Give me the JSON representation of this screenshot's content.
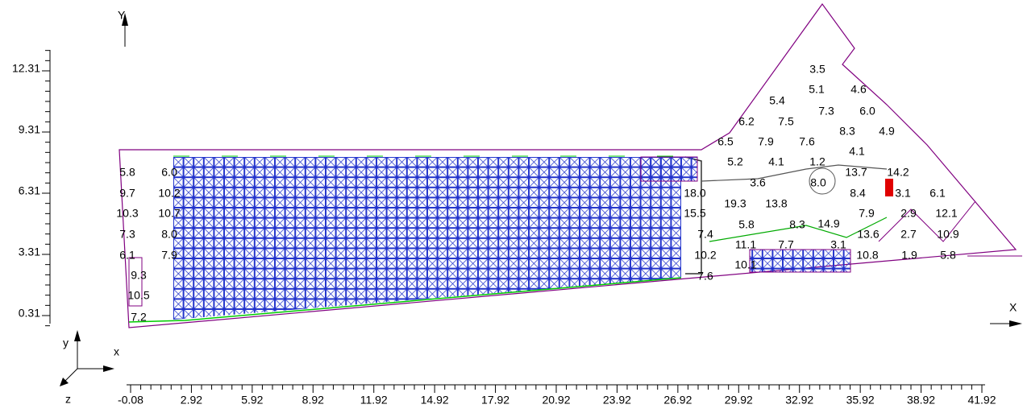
{
  "axes": {
    "y_letter": "Y",
    "x_letter": "X",
    "gizmo_y": "y",
    "gizmo_x": "x",
    "gizmo_z": "z",
    "xticks": [
      "-0.08",
      "2.92",
      "5.92",
      "8.92",
      "11.92",
      "14.92",
      "17.92",
      "20.92",
      "23.92",
      "26.92",
      "29.92",
      "32.92",
      "35.92",
      "38.92",
      "41.92"
    ],
    "yticks": [
      "12.31",
      "9.31",
      "6.31",
      "3.31",
      "0.31"
    ]
  },
  "labels": [
    "5.8",
    "6.0",
    "9.7",
    "10.2",
    "10.3",
    "10.7",
    "7.3",
    "8.0",
    "6.1",
    "7.9",
    "9.3",
    "10.5",
    "7.2",
    "3.5",
    "5.1",
    "4.6",
    "5.4",
    "7.3",
    "6.0",
    "6.2",
    "7.5",
    "8.3",
    "4.9",
    "6.5",
    "7.9",
    "7.6",
    "5.2",
    "4.1",
    "1.2",
    "4.1",
    "13.7",
    "14.2",
    "3.6",
    "8.0",
    "18.0",
    "8.4",
    "3.1",
    "6.1",
    "19.3",
    "13.8",
    "15.5",
    "7.9",
    "2.9",
    "12.1",
    "5.8",
    "8.3",
    "14.9",
    "7.4",
    "13.6",
    "2.7",
    "10.9",
    "11.1",
    "7.7",
    "3.1",
    "10.2",
    "10.1",
    "10.8",
    "1.9",
    "5.8",
    "7.6"
  ]
}
